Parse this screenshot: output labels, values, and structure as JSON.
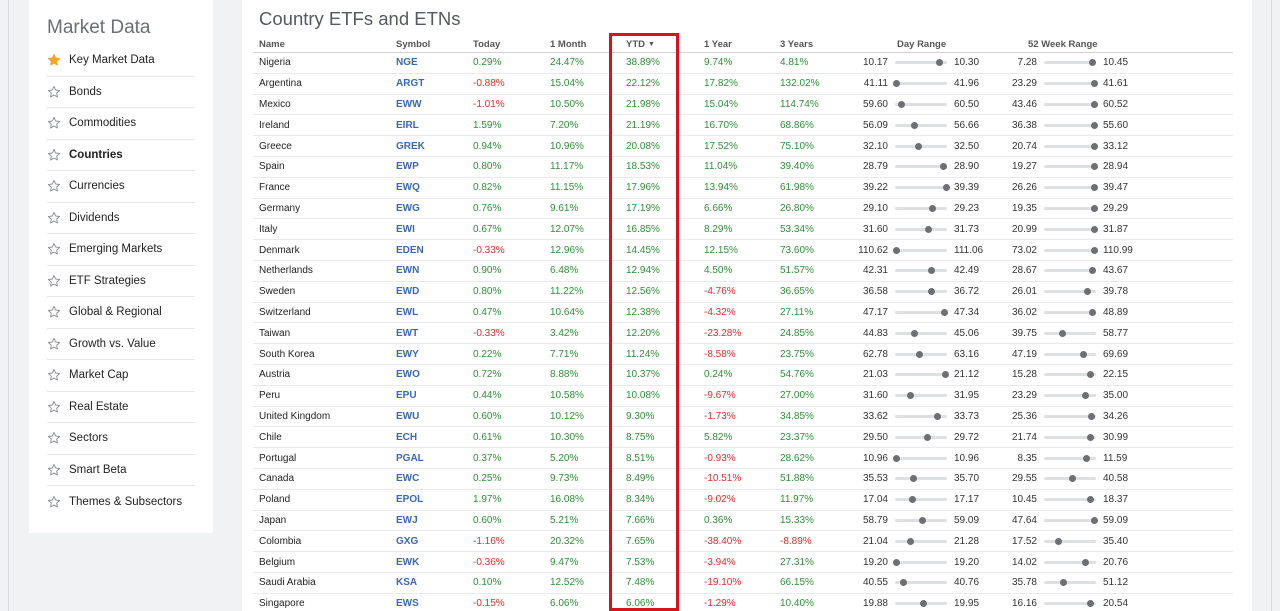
{
  "sidebar": {
    "title": "Market Data",
    "items": [
      {
        "label": "Key Market Data",
        "starred": true,
        "active": false
      },
      {
        "label": "Bonds",
        "starred": false,
        "active": false
      },
      {
        "label": "Commodities",
        "starred": false,
        "active": false
      },
      {
        "label": "Countries",
        "starred": false,
        "active": true
      },
      {
        "label": "Currencies",
        "starred": false,
        "active": false
      },
      {
        "label": "Dividends",
        "starred": false,
        "active": false
      },
      {
        "label": "Emerging Markets",
        "starred": false,
        "active": false
      },
      {
        "label": "ETF Strategies",
        "starred": false,
        "active": false
      },
      {
        "label": "Global & Regional",
        "starred": false,
        "active": false
      },
      {
        "label": "Growth vs. Value",
        "starred": false,
        "active": false
      },
      {
        "label": "Market Cap",
        "starred": false,
        "active": false
      },
      {
        "label": "Real Estate",
        "starred": false,
        "active": false
      },
      {
        "label": "Sectors",
        "starred": false,
        "active": false
      },
      {
        "label": "Smart Beta",
        "starred": false,
        "active": false
      },
      {
        "label": "Themes & Subsectors",
        "starred": false,
        "active": false
      }
    ]
  },
  "main": {
    "title": "Country ETFs and ETNs",
    "columns": {
      "name": "Name",
      "symbol": "Symbol",
      "today": "Today",
      "month": "1 Month",
      "ytd": "YTD",
      "year": "1 Year",
      "years3": "3 Years",
      "day_range": "Day Range",
      "week52_range": "52 Week Range"
    },
    "sorted_column": "YTD",
    "sort_direction": "descending",
    "colors": {
      "positive": "#2f8f38",
      "negative": "#d9302a",
      "symbol": "#3a68b8",
      "highlight": "#d7141c"
    },
    "rows": [
      {
        "name": "Nigeria",
        "symbol": "NGE",
        "today": "0.29%",
        "month": "24.47%",
        "ytd": "38.89%",
        "year": "9.74%",
        "years3": "4.81%",
        "day_lo": "10.17",
        "day_hi": "10.30",
        "day_pos": 0.85,
        "w_lo": "7.28",
        "w_hi": "10.45",
        "w_pos": 0.94
      },
      {
        "name": "Argentina",
        "symbol": "ARGT",
        "today": "-0.88%",
        "month": "15.04%",
        "ytd": "22.12%",
        "year": "17.82%",
        "years3": "132.02%",
        "day_lo": "41.11",
        "day_hi": "41.96",
        "day_pos": 0.03,
        "w_lo": "23.29",
        "w_hi": "41.61",
        "w_pos": 0.98
      },
      {
        "name": "Mexico",
        "symbol": "EWW",
        "today": "-1.01%",
        "month": "10.50%",
        "ytd": "21.98%",
        "year": "15.04%",
        "years3": "114.74%",
        "day_lo": "59.60",
        "day_hi": "60.50",
        "day_pos": 0.12,
        "w_lo": "43.46",
        "w_hi": "60.52",
        "w_pos": 0.98
      },
      {
        "name": "Ireland",
        "symbol": "EIRL",
        "today": "1.59%",
        "month": "7.20%",
        "ytd": "21.19%",
        "year": "16.70%",
        "years3": "68.86%",
        "day_lo": "56.09",
        "day_hi": "56.66",
        "day_pos": 0.38,
        "w_lo": "36.38",
        "w_hi": "55.60",
        "w_pos": 0.98
      },
      {
        "name": "Greece",
        "symbol": "GREK",
        "today": "0.94%",
        "month": "10.96%",
        "ytd": "20.08%",
        "year": "17.52%",
        "years3": "75.10%",
        "day_lo": "32.10",
        "day_hi": "32.50",
        "day_pos": 0.46,
        "w_lo": "20.74",
        "w_hi": "33.12",
        "w_pos": 0.98
      },
      {
        "name": "Spain",
        "symbol": "EWP",
        "today": "0.80%",
        "month": "11.17%",
        "ytd": "18.53%",
        "year": "11.04%",
        "years3": "39.40%",
        "day_lo": "28.79",
        "day_hi": "28.90",
        "day_pos": 0.93,
        "w_lo": "19.27",
        "w_hi": "28.94",
        "w_pos": 0.98
      },
      {
        "name": "France",
        "symbol": "EWQ",
        "today": "0.82%",
        "month": "11.15%",
        "ytd": "17.96%",
        "year": "13.94%",
        "years3": "61.98%",
        "day_lo": "39.22",
        "day_hi": "39.39",
        "day_pos": 0.99,
        "w_lo": "26.26",
        "w_hi": "39.47",
        "w_pos": 0.98
      },
      {
        "name": "Germany",
        "symbol": "EWG",
        "today": "0.76%",
        "month": "9.61%",
        "ytd": "17.19%",
        "year": "6.66%",
        "years3": "26.80%",
        "day_lo": "29.10",
        "day_hi": "29.23",
        "day_pos": 0.72,
        "w_lo": "19.35",
        "w_hi": "29.29",
        "w_pos": 0.98
      },
      {
        "name": "Italy",
        "symbol": "EWI",
        "today": "0.67%",
        "month": "12.07%",
        "ytd": "16.85%",
        "year": "8.29%",
        "years3": "53.34%",
        "day_lo": "31.60",
        "day_hi": "31.73",
        "day_pos": 0.64,
        "w_lo": "20.99",
        "w_hi": "31.87",
        "w_pos": 0.98
      },
      {
        "name": "Denmark",
        "symbol": "EDEN",
        "today": "-0.33%",
        "month": "12.96%",
        "ytd": "14.45%",
        "year": "12.15%",
        "years3": "73.60%",
        "day_lo": "110.62",
        "day_hi": "111.06",
        "day_pos": 0.02,
        "w_lo": "73.02",
        "w_hi": "110.99",
        "w_pos": 0.98
      },
      {
        "name": "Netherlands",
        "symbol": "EWN",
        "today": "0.90%",
        "month": "6.48%",
        "ytd": "12.94%",
        "year": "4.50%",
        "years3": "51.57%",
        "day_lo": "42.31",
        "day_hi": "42.49",
        "day_pos": 0.7,
        "w_lo": "28.67",
        "w_hi": "43.67",
        "w_pos": 0.94
      },
      {
        "name": "Sweden",
        "symbol": "EWD",
        "today": "0.80%",
        "month": "11.22%",
        "ytd": "12.56%",
        "year": "-4.76%",
        "years3": "36.65%",
        "day_lo": "36.58",
        "day_hi": "36.72",
        "day_pos": 0.7,
        "w_lo": "26.01",
        "w_hi": "39.78",
        "w_pos": 0.84
      },
      {
        "name": "Switzerland",
        "symbol": "EWL",
        "today": "0.47%",
        "month": "10.64%",
        "ytd": "12.38%",
        "year": "-4.32%",
        "years3": "27.11%",
        "day_lo": "47.17",
        "day_hi": "47.34",
        "day_pos": 0.95,
        "w_lo": "36.02",
        "w_hi": "48.89",
        "w_pos": 0.94
      },
      {
        "name": "Taiwan",
        "symbol": "EWT",
        "today": "-0.33%",
        "month": "3.42%",
        "ytd": "12.20%",
        "year": "-23.28%",
        "years3": "24.85%",
        "day_lo": "44.83",
        "day_hi": "45.06",
        "day_pos": 0.37,
        "w_lo": "39.75",
        "w_hi": "58.77",
        "w_pos": 0.35
      },
      {
        "name": "South Korea",
        "symbol": "EWY",
        "today": "0.22%",
        "month": "7.71%",
        "ytd": "11.24%",
        "year": "-8.58%",
        "years3": "23.75%",
        "day_lo": "62.78",
        "day_hi": "63.16",
        "day_pos": 0.47,
        "w_lo": "47.19",
        "w_hi": "69.69",
        "w_pos": 0.75
      },
      {
        "name": "Austria",
        "symbol": "EWO",
        "today": "0.72%",
        "month": "8.88%",
        "ytd": "10.37%",
        "year": "0.24%",
        "years3": "54.76%",
        "day_lo": "21.03",
        "day_hi": "21.12",
        "day_pos": 0.97,
        "w_lo": "15.28",
        "w_hi": "22.15",
        "w_pos": 0.9
      },
      {
        "name": "Peru",
        "symbol": "EPU",
        "today": "0.44%",
        "month": "10.58%",
        "ytd": "10.08%",
        "year": "-9.67%",
        "years3": "27.00%",
        "day_lo": "31.60",
        "day_hi": "31.95",
        "day_pos": 0.3,
        "w_lo": "23.29",
        "w_hi": "35.00",
        "w_pos": 0.8
      },
      {
        "name": "United Kingdom",
        "symbol": "EWU",
        "today": "0.60%",
        "month": "10.12%",
        "ytd": "9.30%",
        "year": "-1.73%",
        "years3": "34.85%",
        "day_lo": "33.62",
        "day_hi": "33.73",
        "day_pos": 0.81,
        "w_lo": "25.36",
        "w_hi": "34.26",
        "w_pos": 0.91
      },
      {
        "name": "Chile",
        "symbol": "ECH",
        "today": "0.61%",
        "month": "10.30%",
        "ytd": "8.75%",
        "year": "5.82%",
        "years3": "23.37%",
        "day_lo": "29.50",
        "day_hi": "29.72",
        "day_pos": 0.62,
        "w_lo": "21.74",
        "w_hi": "30.99",
        "w_pos": 0.9
      },
      {
        "name": "Portugal",
        "symbol": "PGAL",
        "today": "0.37%",
        "month": "5.20%",
        "ytd": "8.51%",
        "year": "-0.93%",
        "years3": "28.62%",
        "day_lo": "10.96",
        "day_hi": "10.96",
        "day_pos": 0.03,
        "w_lo": "8.35",
        "w_hi": "11.59",
        "w_pos": 0.81
      },
      {
        "name": "Canada",
        "symbol": "EWC",
        "today": "0.25%",
        "month": "9.73%",
        "ytd": "8.49%",
        "year": "-10.51%",
        "years3": "51.88%",
        "day_lo": "35.53",
        "day_hi": "35.70",
        "day_pos": 0.35,
        "w_lo": "29.55",
        "w_hi": "40.58",
        "w_pos": 0.55
      },
      {
        "name": "Poland",
        "symbol": "EPOL",
        "today": "1.97%",
        "month": "16.08%",
        "ytd": "8.34%",
        "year": "-9.02%",
        "years3": "11.97%",
        "day_lo": "17.04",
        "day_hi": "17.17",
        "day_pos": 0.33,
        "w_lo": "10.45",
        "w_hi": "18.37",
        "w_pos": 0.9
      },
      {
        "name": "Japan",
        "symbol": "EWJ",
        "today": "0.60%",
        "month": "5.21%",
        "ytd": "7.66%",
        "year": "0.36%",
        "years3": "15.33%",
        "day_lo": "58.79",
        "day_hi": "59.09",
        "day_pos": 0.52,
        "w_lo": "47.64",
        "w_hi": "59.09",
        "w_pos": 0.98
      },
      {
        "name": "Colombia",
        "symbol": "GXG",
        "today": "-1.16%",
        "month": "20.32%",
        "ytd": "7.65%",
        "year": "-38.40%",
        "years3": "-8.89%",
        "day_lo": "21.04",
        "day_hi": "21.28",
        "day_pos": 0.3,
        "w_lo": "17.52",
        "w_hi": "35.40",
        "w_pos": 0.27
      },
      {
        "name": "Belgium",
        "symbol": "EWK",
        "today": "-0.36%",
        "month": "9.47%",
        "ytd": "7.53%",
        "year": "-3.94%",
        "years3": "27.31%",
        "day_lo": "19.20",
        "day_hi": "19.20",
        "day_pos": 0.03,
        "w_lo": "14.02",
        "w_hi": "20.76",
        "w_pos": 0.8
      },
      {
        "name": "Saudi Arabia",
        "symbol": "KSA",
        "today": "0.10%",
        "month": "12.52%",
        "ytd": "7.48%",
        "year": "-19.10%",
        "years3": "66.15%",
        "day_lo": "40.55",
        "day_hi": "40.76",
        "day_pos": 0.17,
        "w_lo": "35.78",
        "w_hi": "51.12",
        "w_pos": 0.37
      },
      {
        "name": "Singapore",
        "symbol": "EWS",
        "today": "-0.15%",
        "month": "6.06%",
        "ytd": "6.06%",
        "year": "-1.29%",
        "years3": "10.40%",
        "day_lo": "19.88",
        "day_hi": "19.95",
        "day_pos": 0.55,
        "w_lo": "16.16",
        "w_hi": "20.54",
        "w_pos": 0.9
      }
    ]
  }
}
